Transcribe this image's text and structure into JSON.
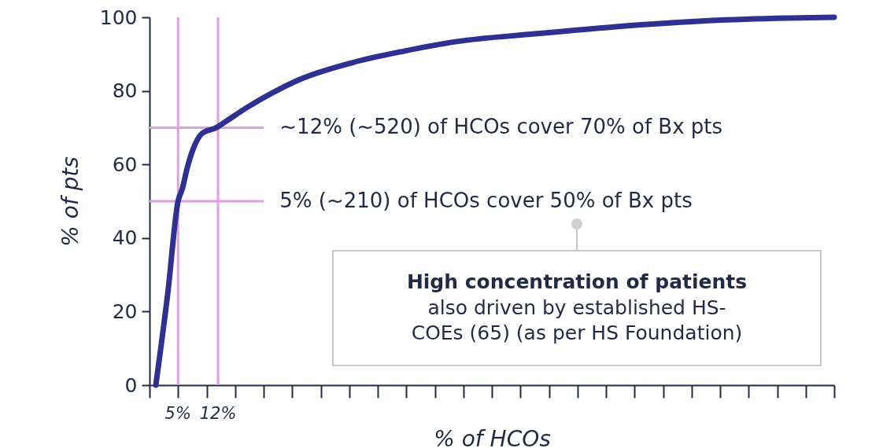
{
  "chart_data": {
    "type": "line",
    "xlabel": "% of HCOs",
    "ylabel": "% of pts",
    "x": [
      1.1,
      3.2,
      5,
      5.75,
      6.6,
      7.6,
      9.2,
      11.7,
      13.3,
      17,
      21.6,
      26.2,
      35.4,
      44.6,
      53.8,
      67.6,
      81.4,
      98,
      111.7,
      120
    ],
    "series": [
      {
        "color": "#2e3192",
        "values": [
          0,
          25,
          50,
          53.4,
          59,
          64,
          68.4,
          70,
          71.6,
          75.4,
          79.5,
          83,
          87.6,
          90.8,
          93.4,
          95.5,
          97.4,
          99.1,
          99.8,
          100
        ]
      }
    ],
    "xlim": [
      0,
      120
    ],
    "xticks": [
      {
        "value": 0,
        "label": null
      },
      {
        "value": 5,
        "label": null
      },
      {
        "value": 10,
        "label": null
      },
      {
        "value": 15,
        "label": null
      },
      {
        "value": 20,
        "label": null
      },
      {
        "value": 25,
        "label": null
      },
      {
        "value": 30,
        "label": null
      },
      {
        "value": 35,
        "label": null
      },
      {
        "value": 40,
        "label": null
      },
      {
        "value": 45,
        "label": null
      },
      {
        "value": 50,
        "label": null
      },
      {
        "value": 55,
        "label": null
      },
      {
        "value": 60,
        "label": null
      },
      {
        "value": 65,
        "label": null
      },
      {
        "value": 70,
        "label": null
      },
      {
        "value": 75,
        "label": null
      },
      {
        "value": 80,
        "label": null
      },
      {
        "value": 85,
        "label": null
      },
      {
        "value": 90,
        "label": null
      },
      {
        "value": 95,
        "label": null
      },
      {
        "value": 100,
        "label": null
      },
      {
        "value": 105,
        "label": null
      },
      {
        "value": 110,
        "label": null
      },
      {
        "value": 115,
        "label": null
      },
      {
        "value": 120,
        "label": null
      }
    ],
    "ylim": [
      0,
      100
    ],
    "yticks": [
      0,
      20,
      40,
      60,
      80,
      100
    ],
    "tick_labels": "y",
    "grid": false,
    "marker": "none",
    "line_style": "solid",
    "ref_lines": [
      {
        "axis": "x",
        "value": 5,
        "label": "5%",
        "color": "#e39ee0"
      },
      {
        "axis": "x",
        "value": 12,
        "label": "12%",
        "color": "#e39ee0"
      },
      {
        "axis": "y",
        "value": 70,
        "label": "~12% (~520) of HCOs cover 70% of Bx pts",
        "color": "#e39ee0"
      },
      {
        "axis": "y",
        "value": 50,
        "label": "5% (~210) of HCOs cover 50% of Bx pts",
        "color": "#e39ee0"
      }
    ],
    "annotations": [
      "High concentration of patients",
      "also driven by established HS-\nCOEs (65) (as per HS Foundation)"
    ]
  }
}
